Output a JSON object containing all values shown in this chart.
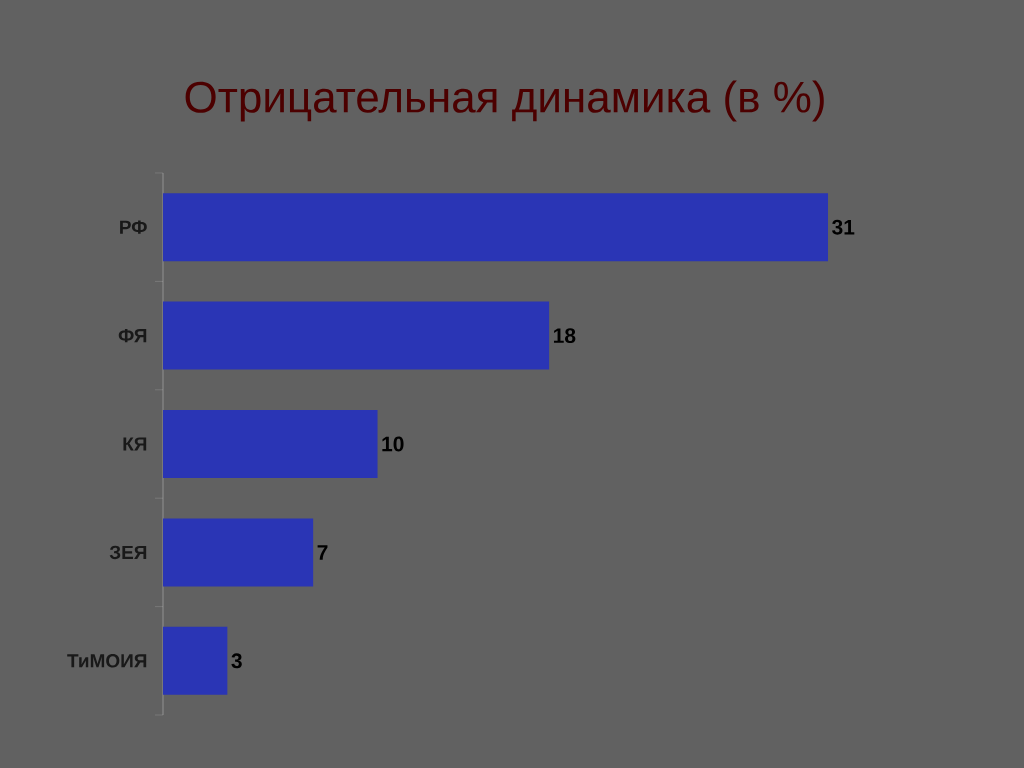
{
  "chart_data": {
    "type": "bar",
    "orientation": "horizontal",
    "title": "Отрицательная динамика (в %)",
    "categories": [
      "РФ",
      "ФЯ",
      "КЯ",
      "ЗЕЯ",
      "ТиМОИЯ"
    ],
    "values": [
      31,
      18,
      10,
      7,
      3
    ],
    "color": "#2a35b5",
    "data_labels": true
  }
}
